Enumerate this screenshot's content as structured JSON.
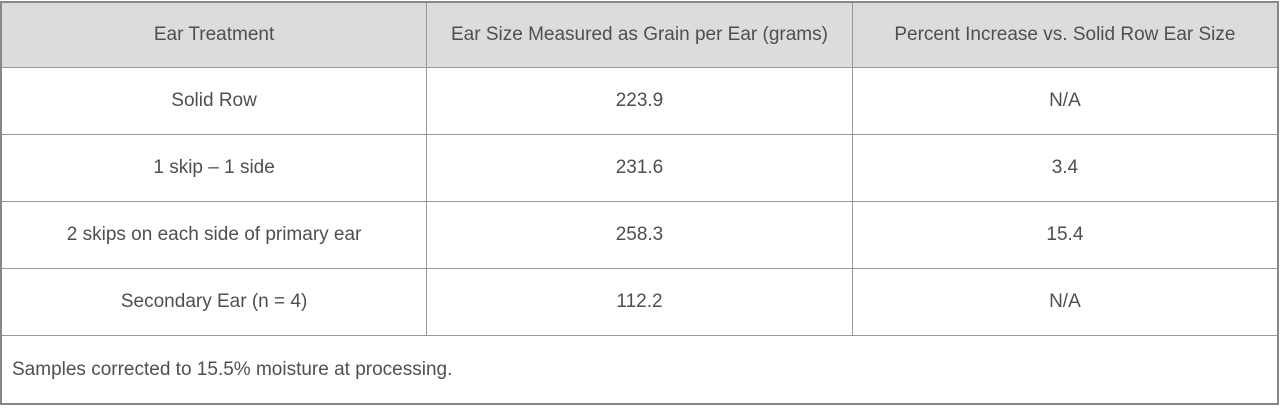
{
  "chart_data": {
    "type": "table",
    "title": "",
    "columns": [
      "Ear Treatment",
      "Ear Size Measured as Grain per Ear (grams)",
      "Percent Increase vs. Solid Row Ear Size"
    ],
    "rows": [
      [
        "Solid Row",
        "223.9",
        "N/A"
      ],
      [
        "1 skip – 1 side",
        "231.6",
        "3.4"
      ],
      [
        "2 skips on each side of primary ear",
        "258.3",
        "15.4"
      ],
      [
        "Secondary Ear (n = 4)",
        "112.2",
        "N/A"
      ]
    ],
    "footnote": "Samples corrected to 15.5% moisture at processing.",
    "layout_hints": {
      "header_background": "#dcdcdc",
      "border_color": "#989898",
      "outer_border_color": "#878787",
      "text_color": "#4f4f4f",
      "grid": "on",
      "column_count": 3,
      "footnote_spans_all_columns": true
    }
  }
}
